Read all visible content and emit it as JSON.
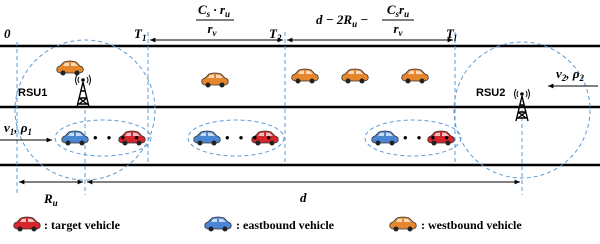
{
  "time_marks": [
    {
      "main": "0"
    },
    {
      "main": "T",
      "sub": "1"
    },
    {
      "main": "T",
      "sub": "2"
    },
    {
      "main": "T",
      "sub": "l"
    }
  ],
  "interval_1": {
    "numerator": [
      {
        "main": "C",
        "sub": "s"
      },
      {
        "main": " · r",
        "sub": "u"
      }
    ],
    "denominator": {
      "main": "r",
      "sub": "v"
    }
  },
  "interval_2": {
    "prefix": {
      "main": "d − 2R",
      "sub": "u"
    },
    "minus": " − ",
    "numerator": [
      {
        "main": "C",
        "sub": "s"
      },
      {
        "main": "r",
        "sub": "u"
      }
    ],
    "denominator": {
      "main": "r",
      "sub": "v"
    }
  },
  "rsus": [
    "RSU1",
    "RSU2"
  ],
  "flows": [
    [
      {
        "main": "v",
        "sub": "1"
      },
      {
        "main": ", ρ",
        "sub": "1"
      }
    ],
    [
      {
        "main": "v",
        "sub": "2"
      },
      {
        "main": ", ρ",
        "sub": "2"
      }
    ]
  ],
  "distances": {
    "rsu_range": {
      "main": "R",
      "sub": "u"
    },
    "d": "d"
  },
  "legend": [
    ": target vehicle",
    ": eastbound vehicle",
    ": westbound vehicle"
  ]
}
